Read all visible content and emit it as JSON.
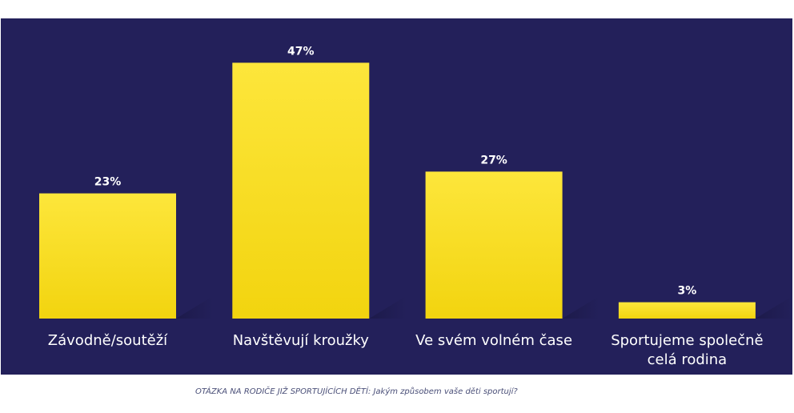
{
  "chart_data": {
    "type": "bar",
    "categories": [
      [
        "Závodně/soutěží"
      ],
      [
        "Navštěvují kroužky"
      ],
      [
        "Ve svém volném čase"
      ],
      [
        "Sportujeme společně",
        "celá rodina"
      ]
    ],
    "values": [
      23,
      47,
      27,
      3
    ],
    "value_labels": [
      "23%",
      "47%",
      "27%",
      "3%"
    ],
    "value_unit": "%",
    "ylim": [
      0,
      50
    ],
    "grid": false,
    "legend": "none",
    "colors": {
      "background": "#23205a",
      "bar": "#f7db17",
      "bar_top": "#fde63b",
      "text": "#ffffff"
    }
  },
  "caption": "OTÁZKA NA RODIČE JIŽ SPORTUJÍCÍCH DĚTÍ: Jakým způsobem vaše děti sportují?"
}
